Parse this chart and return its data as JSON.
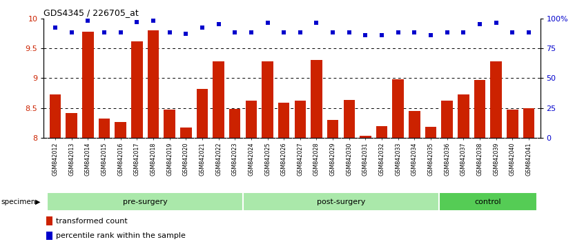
{
  "title": "GDS4345 / 226705_at",
  "samples": [
    "GSM842012",
    "GSM842013",
    "GSM842014",
    "GSM842015",
    "GSM842016",
    "GSM842017",
    "GSM842018",
    "GSM842019",
    "GSM842020",
    "GSM842021",
    "GSM842022",
    "GSM842023",
    "GSM842024",
    "GSM842025",
    "GSM842026",
    "GSM842027",
    "GSM842028",
    "GSM842029",
    "GSM842030",
    "GSM842031",
    "GSM842032",
    "GSM842033",
    "GSM842034",
    "GSM842035",
    "GSM842036",
    "GSM842037",
    "GSM842038",
    "GSM842039",
    "GSM842040",
    "GSM842041"
  ],
  "transformed_count": [
    8.73,
    8.42,
    9.78,
    8.32,
    8.27,
    9.61,
    9.8,
    8.47,
    8.17,
    8.82,
    9.28,
    8.49,
    8.62,
    9.28,
    8.59,
    8.62,
    9.3,
    8.3,
    8.64,
    8.03,
    8.2,
    8.98,
    8.45,
    8.18,
    8.62,
    8.73,
    8.97,
    9.28,
    8.47,
    8.5
  ],
  "percentile_rank": [
    92,
    88,
    98,
    88,
    88,
    97,
    98,
    88,
    87,
    92,
    95,
    88,
    88,
    96,
    88,
    88,
    96,
    88,
    88,
    86,
    86,
    88,
    88,
    86,
    88,
    88,
    95,
    96,
    88,
    88
  ],
  "group_defs": [
    {
      "label": "pre-surgery",
      "start": 0,
      "end": 11,
      "color": "#aae8aa"
    },
    {
      "label": "post-surgery",
      "start": 12,
      "end": 23,
      "color": "#aae8aa"
    },
    {
      "label": "control",
      "start": 24,
      "end": 29,
      "color": "#55cc55"
    }
  ],
  "ylim_left": [
    8.0,
    10.0
  ],
  "ylim_right": [
    0,
    100
  ],
  "yticks_left": [
    8.0,
    8.5,
    9.0,
    9.5,
    10.0
  ],
  "yticks_right": [
    0,
    25,
    50,
    75,
    100
  ],
  "bar_color": "#cc2200",
  "dot_color": "#0000cc",
  "tick_bg": "#d8d8d8"
}
